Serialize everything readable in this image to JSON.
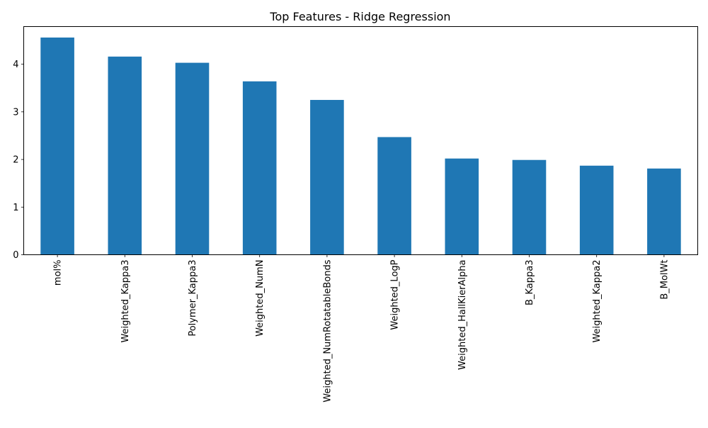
{
  "chart_data": {
    "type": "bar",
    "title": "Top Features - Ridge Regression",
    "xlabel": "",
    "ylabel": "",
    "categories": [
      "mol%",
      "Weighted_Kappa3",
      "Polymer_Kappa3",
      "Weighted_NumN",
      "Weighted_NumRotatableBonds",
      "Weighted_LogP",
      "Weighted_HallKierAlpha",
      "B_Kappa3",
      "Weighted_Kappa2",
      "B_MolWt"
    ],
    "values": [
      4.56,
      4.16,
      4.03,
      3.64,
      3.25,
      2.47,
      2.02,
      1.99,
      1.87,
      1.81
    ],
    "yticks": [
      0,
      1,
      2,
      3,
      4
    ],
    "ylim": [
      0,
      4.79
    ],
    "grid": false,
    "legend": "none",
    "bar_color": "#1f77b4"
  }
}
